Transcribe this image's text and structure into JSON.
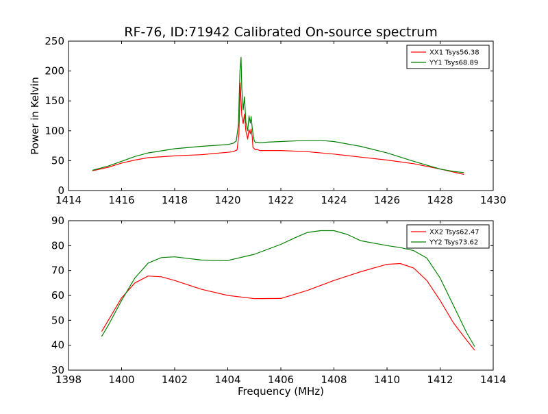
{
  "title": "RF-76, ID:71942 Calibrated On-source spectrum",
  "colors": {
    "xx": "#ff0000",
    "yy": "#008000",
    "axes": "#000000"
  },
  "chart_data": [
    {
      "type": "line",
      "xlabel": "",
      "ylabel": "Power in Kelvin",
      "xlim": [
        1414,
        1430
      ],
      "ylim": [
        0,
        250
      ],
      "xticks": [
        1414,
        1416,
        1418,
        1420,
        1422,
        1424,
        1426,
        1428,
        1430
      ],
      "yticks": [
        0,
        50,
        100,
        150,
        200,
        250
      ],
      "legend_position": "top-right",
      "grid": false,
      "series": [
        {
          "name": "XX1 Tsys56.38",
          "color": "#ff0000",
          "x": [
            1414.9,
            1415.5,
            1416.0,
            1416.5,
            1417.0,
            1418.0,
            1419.0,
            1419.5,
            1420.0,
            1420.2,
            1420.35,
            1420.42,
            1420.47,
            1420.5,
            1420.53,
            1420.58,
            1420.63,
            1420.68,
            1420.75,
            1420.8,
            1420.85,
            1420.88,
            1420.92,
            1420.95,
            1421.0,
            1421.05,
            1421.1,
            1421.2,
            1421.5,
            1422.0,
            1423.0,
            1424.0,
            1425.0,
            1426.0,
            1427.0,
            1428.0,
            1428.5,
            1428.9
          ],
          "y": [
            33,
            39,
            46,
            51,
            55,
            58,
            60,
            62,
            64,
            65,
            68,
            95,
            180,
            150,
            125,
            112,
            128,
            100,
            86,
            102,
            95,
            103,
            90,
            72,
            70,
            68,
            69,
            67,
            67,
            67,
            65,
            61,
            56,
            51,
            45,
            36,
            31,
            27
          ]
        },
        {
          "name": "YY1 Tsys68.89",
          "color": "#008000",
          "x": [
            1414.9,
            1415.5,
            1416.0,
            1416.5,
            1417.0,
            1418.0,
            1419.0,
            1420.0,
            1420.2,
            1420.32,
            1420.4,
            1420.46,
            1420.5,
            1420.53,
            1420.58,
            1420.63,
            1420.68,
            1420.75,
            1420.8,
            1420.85,
            1420.88,
            1420.92,
            1420.96,
            1421.0,
            1421.05,
            1421.1,
            1421.2,
            1421.5,
            1422.0,
            1423.0,
            1423.5,
            1424.0,
            1425.0,
            1426.0,
            1427.0,
            1428.0,
            1428.5,
            1428.9
          ],
          "y": [
            34,
            41,
            49,
            57,
            63,
            70,
            74,
            77,
            79,
            83,
            110,
            200,
            223,
            170,
            135,
            157,
            115,
            100,
            125,
            113,
            124,
            105,
            92,
            83,
            80,
            81,
            80,
            81,
            82,
            84,
            84,
            82,
            74,
            63,
            49,
            36,
            32,
            30
          ]
        }
      ]
    },
    {
      "type": "line",
      "xlabel": "Frequency (MHz)",
      "ylabel": "",
      "xlim": [
        1398,
        1414
      ],
      "ylim": [
        30,
        90
      ],
      "xticks": [
        1398,
        1400,
        1402,
        1404,
        1406,
        1408,
        1410,
        1412,
        1414
      ],
      "yticks": [
        30,
        40,
        50,
        60,
        70,
        80,
        90
      ],
      "legend_position": "top-right",
      "grid": false,
      "series": [
        {
          "name": "XX2 Tsys62.47",
          "color": "#ff0000",
          "x": [
            1399.25,
            1399.5,
            1400.0,
            1400.5,
            1401.0,
            1401.5,
            1402.0,
            1403.0,
            1404.0,
            1405.0,
            1406.0,
            1407.0,
            1408.0,
            1409.0,
            1410.0,
            1410.5,
            1411.0,
            1411.5,
            1412.0,
            1412.5,
            1413.0,
            1413.3
          ],
          "y": [
            45.5,
            50,
            59,
            65,
            67.8,
            67.5,
            66,
            62.5,
            60,
            58.7,
            58.8,
            62,
            66,
            69.5,
            72.5,
            72.8,
            71,
            66,
            58,
            49,
            42,
            38
          ]
        },
        {
          "name": "YY2 Tsys73.62",
          "color": "#008000",
          "x": [
            1399.25,
            1399.5,
            1400.0,
            1400.5,
            1401.0,
            1401.5,
            1402.0,
            1403.0,
            1404.0,
            1405.0,
            1406.0,
            1406.5,
            1407.0,
            1407.5,
            1408.0,
            1408.5,
            1409.0,
            1410.0,
            1410.5,
            1411.0,
            1411.5,
            1412.0,
            1412.5,
            1413.0,
            1413.3
          ],
          "y": [
            43.5,
            48,
            58,
            67,
            73,
            75.2,
            75.5,
            74.2,
            74,
            76.5,
            80.5,
            83,
            85.3,
            86,
            86,
            84.5,
            82,
            80,
            79.2,
            78,
            75,
            67,
            56,
            45,
            39.5
          ]
        }
      ]
    }
  ]
}
